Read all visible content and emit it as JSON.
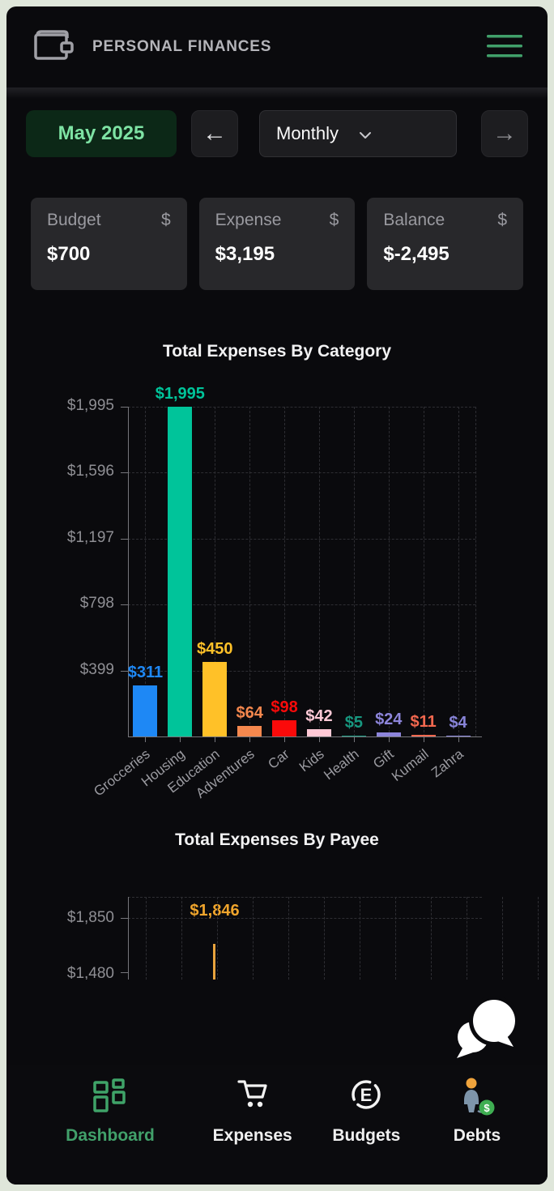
{
  "theme": {
    "appBg": "#0a0a0d",
    "accent": "#41a06a",
    "periodBg": "#0c2817",
    "periodText": "#7ee3a4",
    "underline": "#f5a226"
  },
  "header": {
    "title": "PERSONAL FINANCES"
  },
  "icons": {
    "wallet": "wallet-icon",
    "menu": "hamburger-menu-icon",
    "back": "←",
    "forward": "→",
    "chevron_down": "chevron-down-icon",
    "chat": "chat-bubbles-icon"
  },
  "controls": {
    "period": "May 2025",
    "granularity": "Monthly"
  },
  "summary_cards": [
    {
      "label": "Budget",
      "value": "$700",
      "symbol": "$"
    },
    {
      "label": "Expense",
      "value": "$3,195",
      "symbol": "$"
    },
    {
      "label": "Balance",
      "value": "$-2,495",
      "symbol": "$"
    }
  ],
  "chart_data": [
    {
      "type": "bar",
      "title": "Total Expenses By Category",
      "categories": [
        "Grocceries",
        "Housing",
        "Education",
        "Adventures",
        "Car",
        "Kids",
        "Health",
        "Gift",
        "Kumail",
        "Zahra"
      ],
      "values": [
        311,
        1995,
        450,
        64,
        98,
        42,
        5,
        24,
        11,
        4
      ],
      "value_labels": [
        "$311",
        "$1,995",
        "$450",
        "$64",
        "$98",
        "$42",
        "$5",
        "$24",
        "$11",
        "$4"
      ],
      "colors": [
        "#1e88f5",
        "#00c49a",
        "#ffc128",
        "#f5884e",
        "#fb0a0a",
        "#ffc9d6",
        "#17977f",
        "#8d85db",
        "#f2684f",
        "#8884d8"
      ],
      "y_tick_labels": [
        "$1,995",
        "$1,596",
        "$1,197",
        "$798",
        "$399"
      ],
      "y_tick_values": [
        1995,
        1596,
        1197,
        798,
        399
      ],
      "ylim": [
        0,
        1995
      ],
      "grid": "dashed",
      "legend": "none"
    },
    {
      "type": "bar",
      "title": "Total Expenses By Payee",
      "visible_values": [
        1846
      ],
      "visible_value_labels": [
        "$1,846"
      ],
      "bar_color": "#e8a33d",
      "label_color": "#f0a52c",
      "y_tick_labels_visible": [
        "$1,850",
        "$1,480"
      ],
      "truncated": true
    }
  ],
  "bottom_nav": {
    "items": [
      {
        "label": "Dashboard",
        "icon": "dashboard-grid-icon",
        "active": true
      },
      {
        "label": "Expenses",
        "icon": "shopping-cart-icon",
        "active": false
      },
      {
        "label": "Budgets",
        "icon": "circled-e-icon",
        "active": false
      },
      {
        "label": "Debts",
        "icon": "debt-person-icon",
        "active": false
      }
    ]
  }
}
